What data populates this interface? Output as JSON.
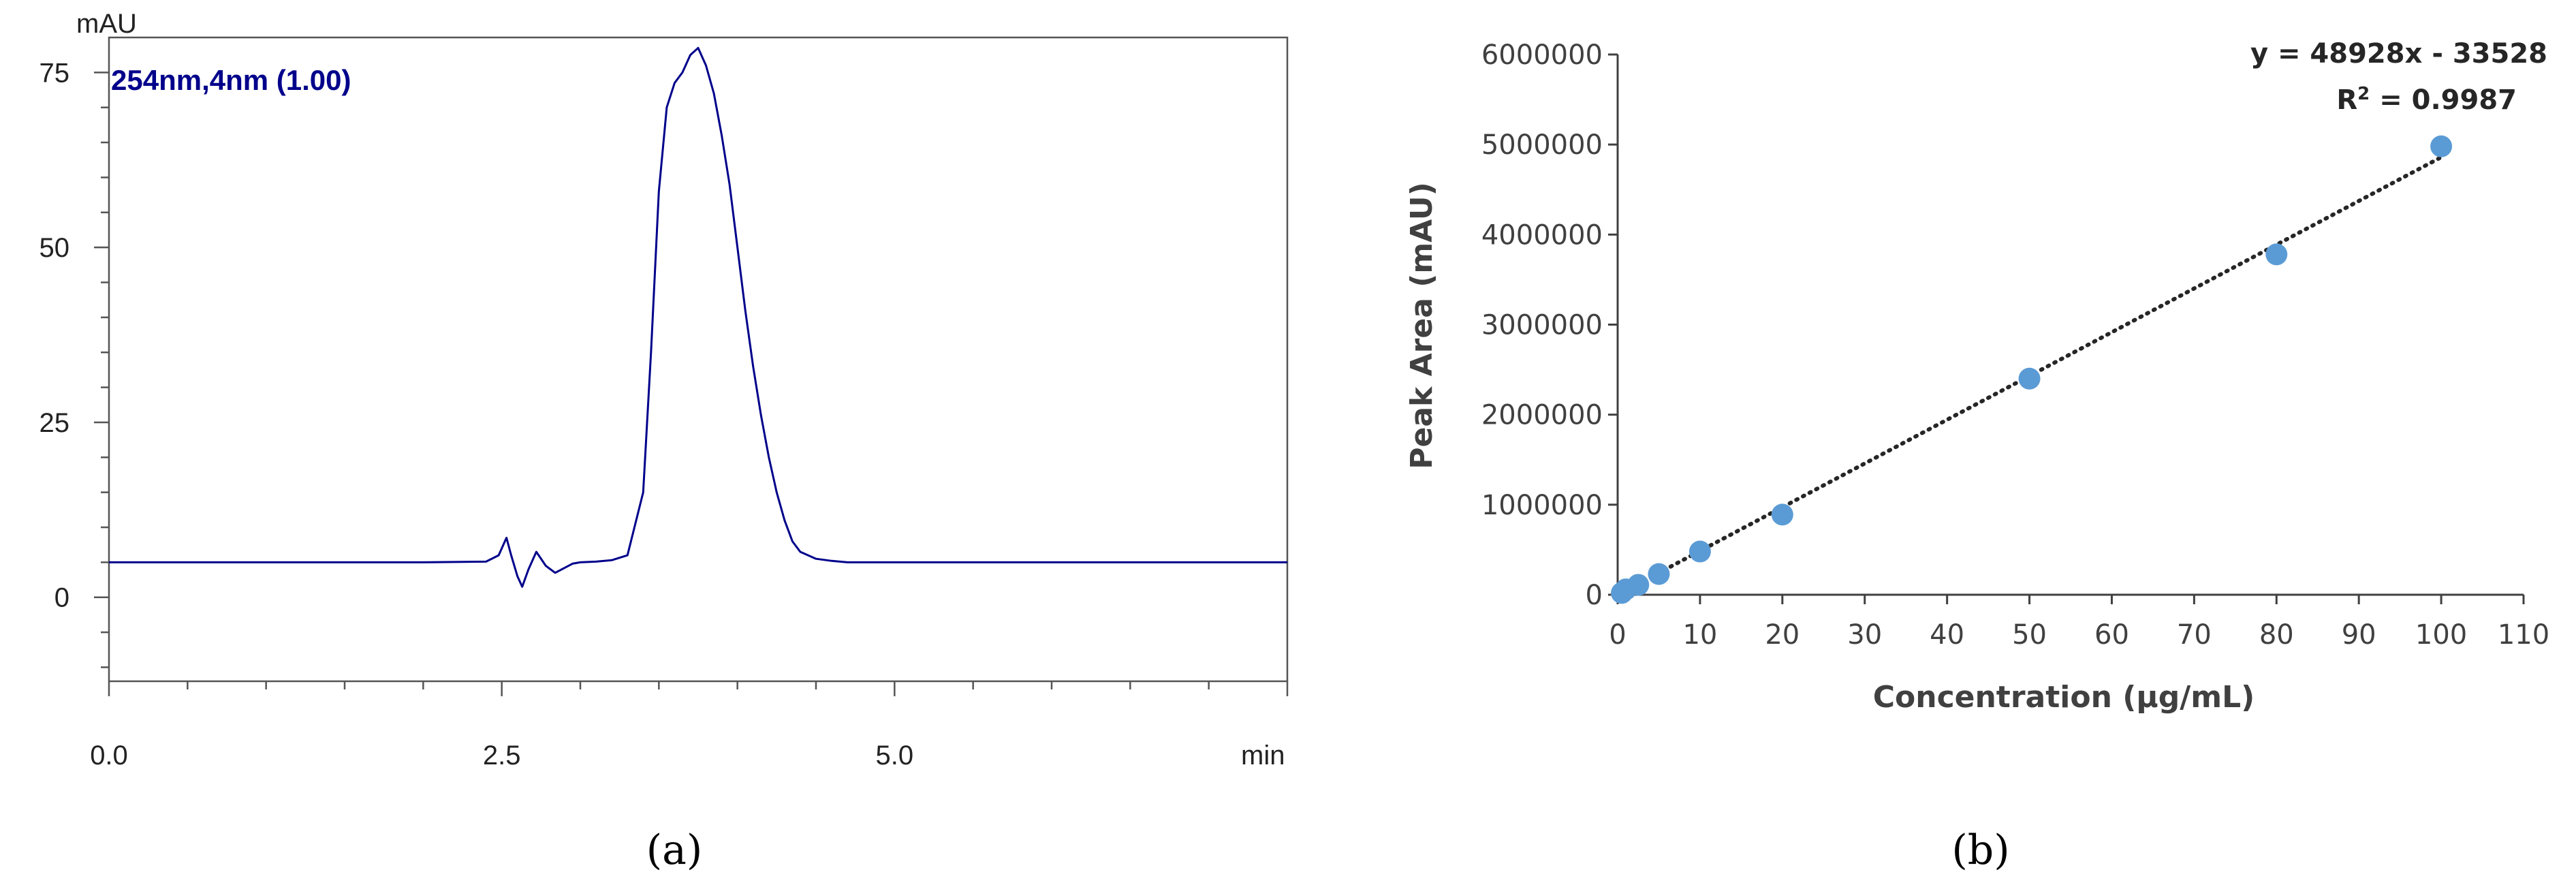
{
  "chart_data": [
    {
      "type": "line",
      "panel_label": "(a)",
      "title": "",
      "signal_label": "254nm,4nm (1.00)",
      "ylabel": "mAU",
      "xlabel": "min",
      "xlim": [
        0,
        7.5
      ],
      "ylim": [
        -12,
        80
      ],
      "xticks": [
        0.0,
        2.5,
        5.0
      ],
      "xtick_labels": [
        "0.0",
        "2.5",
        "5.0"
      ],
      "yticks": [
        0,
        25,
        50,
        75
      ],
      "ytick_labels": [
        "0",
        "25",
        "50",
        "75"
      ],
      "color": "#00008b",
      "grid": false,
      "series": [
        {
          "x": [
            0.0,
            1.0,
            2.0,
            2.4,
            2.48,
            2.53,
            2.56,
            2.6,
            2.63,
            2.67,
            2.72,
            2.78,
            2.84,
            2.9,
            2.95,
            3.0,
            3.1,
            3.2,
            3.3,
            3.4,
            3.45,
            3.5,
            3.55,
            3.6,
            3.65,
            3.7,
            3.75,
            3.8,
            3.85,
            3.9,
            3.95,
            4.0,
            4.05,
            4.1,
            4.15,
            4.2,
            4.25,
            4.3,
            4.35,
            4.4,
            4.5,
            4.6,
            4.7,
            5.0,
            6.0,
            7.5
          ],
          "y": [
            5.0,
            5.0,
            5.0,
            5.1,
            6.0,
            8.5,
            6.0,
            3.0,
            1.5,
            4.0,
            6.5,
            4.5,
            3.5,
            4.2,
            4.8,
            5.0,
            5.1,
            5.3,
            6.0,
            15.0,
            35.0,
            58.0,
            70.0,
            73.5,
            75.0,
            77.5,
            78.5,
            76.0,
            72.0,
            66.0,
            59.0,
            50.0,
            41.0,
            33.0,
            26.0,
            20.0,
            15.0,
            11.0,
            8.0,
            6.5,
            5.5,
            5.2,
            5.0,
            5.0,
            5.0,
            5.0
          ]
        }
      ]
    },
    {
      "type": "scatter",
      "panel_label": "(b)",
      "title": "",
      "xlabel": "Concentration (µg/mL)",
      "ylabel": "Peak Area (mAU)",
      "xlim": [
        0,
        110
      ],
      "ylim": [
        0,
        6000000
      ],
      "xticks": [
        0,
        10,
        20,
        30,
        40,
        50,
        60,
        70,
        80,
        90,
        100,
        110
      ],
      "yticks": [
        0,
        1000000,
        2000000,
        3000000,
        4000000,
        5000000,
        6000000
      ],
      "marker_color": "#5b9bd5",
      "grid": false,
      "series": [
        {
          "x": [
            0.5,
            1,
            2.5,
            5,
            10,
            20,
            50,
            80,
            100
          ],
          "y": [
            20000,
            60000,
            110000,
            230000,
            480000,
            890000,
            2400000,
            3780000,
            4980000
          ]
        }
      ],
      "trendline": {
        "style": "dotted",
        "slope": 48928,
        "intercept": -33528,
        "equation_label": "y = 48928x - 33528",
        "r2_prefix": "R",
        "r2_exponent": "2",
        "r2_value": " = 0.9987"
      }
    }
  ]
}
